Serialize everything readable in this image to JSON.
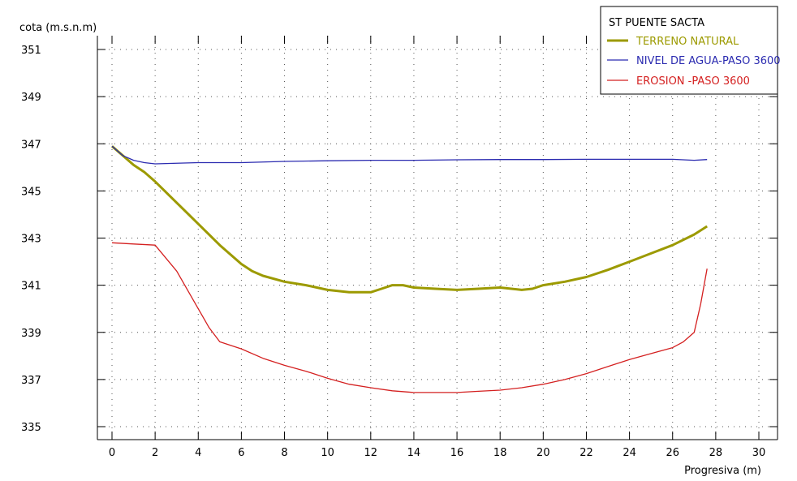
{
  "chart_data": {
    "type": "line",
    "ylabel": "cota (m.s.n.m)",
    "xlabel": "Progresiva (m)",
    "xlim": [
      0,
      30
    ],
    "ylim": [
      335,
      351
    ],
    "xticks": [
      0,
      2,
      4,
      6,
      8,
      10,
      12,
      14,
      16,
      18,
      20,
      22,
      24,
      26,
      28,
      30
    ],
    "yticks": [
      335,
      337,
      339,
      341,
      343,
      345,
      347,
      349,
      351
    ],
    "grid": true,
    "legend_title": "ST PUENTE SACTA",
    "legend_position": "top-right",
    "series": [
      {
        "name": "TERRENO NATURAL",
        "color": "#9c9a00",
        "x": [
          0,
          0.5,
          1,
          1.5,
          2,
          3,
          4,
          5,
          6,
          6.5,
          7,
          8,
          9,
          10,
          11,
          12,
          12.5,
          13,
          13.5,
          14,
          15,
          16,
          17,
          18,
          19,
          19.5,
          20,
          21,
          22,
          23,
          24,
          25,
          26,
          27,
          27.6
        ],
        "values": [
          346.9,
          346.5,
          346.1,
          345.8,
          345.4,
          344.5,
          343.6,
          342.7,
          341.9,
          341.6,
          341.4,
          341.15,
          341.0,
          340.8,
          340.7,
          340.7,
          340.85,
          341.0,
          341.0,
          340.9,
          340.85,
          340.8,
          340.85,
          340.9,
          340.8,
          340.85,
          341.0,
          341.15,
          341.35,
          341.65,
          342.0,
          342.35,
          342.7,
          343.15,
          343.5
        ]
      },
      {
        "name": "NIVEL DE AGUA-PASO 3600",
        "color": "#2b2bb0",
        "x": [
          0,
          0.5,
          1,
          1.5,
          2,
          4,
          6,
          8,
          10,
          12,
          14,
          16,
          18,
          20,
          22,
          24,
          26,
          27,
          27.6
        ],
        "values": [
          346.9,
          346.5,
          346.3,
          346.2,
          346.15,
          346.2,
          346.2,
          346.25,
          346.28,
          346.3,
          346.3,
          346.32,
          346.33,
          346.33,
          346.34,
          346.34,
          346.34,
          346.3,
          346.33
        ]
      },
      {
        "name": "EROSION -PASO 3600",
        "color": "#d42020",
        "x": [
          0,
          1,
          2,
          3,
          4,
          4.5,
          5,
          6,
          7,
          8,
          9,
          10,
          11,
          12,
          13,
          14,
          15,
          16,
          17,
          18,
          19,
          20,
          21,
          22,
          23,
          24,
          25,
          26,
          26.5,
          27,
          27.3,
          27.6
        ],
        "values": [
          342.8,
          342.75,
          342.7,
          341.6,
          340.0,
          339.2,
          338.6,
          338.3,
          337.9,
          337.6,
          337.35,
          337.05,
          336.8,
          336.65,
          336.52,
          336.45,
          336.45,
          336.45,
          336.5,
          336.55,
          336.65,
          336.8,
          337.0,
          337.25,
          337.55,
          337.85,
          338.1,
          338.35,
          338.6,
          339.0,
          340.2,
          341.7
        ]
      }
    ]
  }
}
